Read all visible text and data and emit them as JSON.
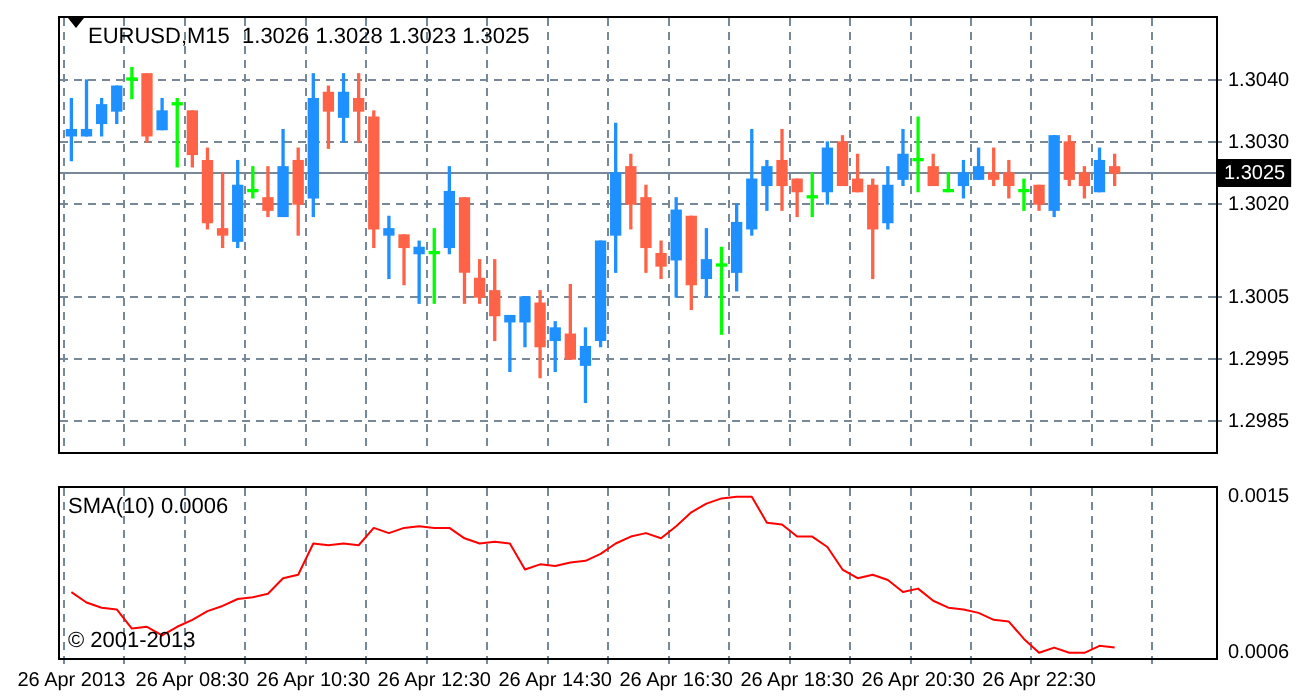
{
  "chart_data": [
    {
      "type": "candlestick",
      "title": "EURUSD,M15  1.3026 1.3028 1.3023 1.3025",
      "categories": [
        null,
        null,
        null,
        null,
        null,
        null,
        null,
        null,
        null,
        null,
        null,
        null,
        null,
        null,
        null,
        null,
        null,
        null,
        null,
        null,
        null,
        null,
        null,
        null,
        null,
        null,
        null,
        null,
        null,
        null,
        null,
        null,
        null,
        null,
        null,
        null,
        null,
        null,
        null,
        null,
        null,
        null,
        null,
        null,
        null,
        null,
        null,
        null,
        null,
        null,
        null,
        null,
        null,
        null,
        null,
        null,
        null,
        null,
        null,
        null,
        null,
        null,
        null,
        null,
        null,
        null,
        null,
        null,
        null,
        null
      ],
      "ohlc": [
        [
          1.3031,
          1.3037,
          1.3027,
          1.3032
        ],
        [
          1.3031,
          1.304,
          1.3031,
          1.3032
        ],
        [
          1.3033,
          1.3037,
          1.3031,
          1.3036
        ],
        [
          1.3035,
          1.3039,
          1.3033,
          1.3039
        ],
        [
          1.304,
          1.3042,
          1.3037,
          1.304
        ],
        [
          1.3041,
          1.3041,
          1.303,
          1.3031
        ],
        [
          1.3032,
          1.3037,
          1.3032,
          1.3035
        ],
        [
          1.3036,
          1.3037,
          1.3026,
          1.3036
        ],
        [
          1.3035,
          1.3035,
          1.3026,
          1.3028
        ],
        [
          1.3027,
          1.3029,
          1.3016,
          1.3017
        ],
        [
          1.3016,
          1.3025,
          1.3013,
          1.3015
        ],
        [
          1.3014,
          1.3027,
          1.3013,
          1.3023
        ],
        [
          1.3022,
          1.3026,
          1.3021,
          1.3022
        ],
        [
          1.3021,
          1.3026,
          1.3018,
          1.3019
        ],
        [
          1.3018,
          1.3032,
          1.3018,
          1.3026
        ],
        [
          1.3027,
          1.3029,
          1.3015,
          1.302
        ],
        [
          1.3021,
          1.3041,
          1.3018,
          1.3037
        ],
        [
          1.3038,
          1.3039,
          1.3029,
          1.3035
        ],
        [
          1.3034,
          1.3041,
          1.303,
          1.3038
        ],
        [
          1.3037,
          1.3041,
          1.303,
          1.3035
        ],
        [
          1.3034,
          1.3035,
          1.3013,
          1.3016
        ],
        [
          1.3015,
          1.3018,
          1.3008,
          1.3016
        ],
        [
          1.3015,
          1.3015,
          1.3007,
          1.3013
        ],
        [
          1.3012,
          1.3014,
          1.3004,
          1.3013
        ],
        [
          1.3012,
          1.3016,
          1.3004,
          1.3012
        ],
        [
          1.3013,
          1.3026,
          1.3012,
          1.3022
        ],
        [
          1.3021,
          1.3021,
          1.3004,
          1.3009
        ],
        [
          1.3008,
          1.3011,
          1.3004,
          1.3005
        ],
        [
          1.3006,
          1.3011,
          1.2998,
          1.3002
        ],
        [
          1.3001,
          1.3002,
          1.2993,
          1.3002
        ],
        [
          1.3001,
          1.3005,
          1.2997,
          1.3005
        ],
        [
          1.3004,
          1.3006,
          1.2992,
          1.2997
        ],
        [
          1.2998,
          1.3001,
          1.2993,
          1.3
        ],
        [
          1.2999,
          1.3007,
          1.2995,
          1.2995
        ],
        [
          1.2994,
          1.3,
          1.2988,
          1.2997
        ],
        [
          1.2998,
          1.3014,
          1.2997,
          1.3014
        ],
        [
          1.3015,
          1.3033,
          1.3009,
          1.3025
        ],
        [
          1.3026,
          1.3028,
          1.3016,
          1.302
        ],
        [
          1.3021,
          1.3023,
          1.3009,
          1.3013
        ],
        [
          1.3012,
          1.3014,
          1.3008,
          1.301
        ],
        [
          1.3011,
          1.3021,
          1.3005,
          1.3019
        ],
        [
          1.3018,
          1.3018,
          1.3003,
          1.3007
        ],
        [
          1.3008,
          1.3016,
          1.3005,
          1.3011
        ],
        [
          1.301,
          1.3013,
          1.2999,
          1.301
        ],
        [
          1.3009,
          1.302,
          1.3006,
          1.3017
        ],
        [
          1.3016,
          1.3032,
          1.3015,
          1.3024
        ],
        [
          1.3023,
          1.3027,
          1.3019,
          1.3026
        ],
        [
          1.3027,
          1.3032,
          1.3019,
          1.3023
        ],
        [
          1.3024,
          1.3024,
          1.3018,
          1.3022
        ],
        [
          1.3021,
          1.3025,
          1.3018,
          1.3021
        ],
        [
          1.3022,
          1.303,
          1.302,
          1.3029
        ],
        [
          1.303,
          1.3031,
          1.3023,
          1.3023
        ],
        [
          1.3024,
          1.3028,
          1.3022,
          1.3022
        ],
        [
          1.3023,
          1.3024,
          1.3008,
          1.3016
        ],
        [
          1.3017,
          1.3026,
          1.3016,
          1.3023
        ],
        [
          1.3024,
          1.3032,
          1.3023,
          1.3028
        ],
        [
          1.3027,
          1.3034,
          1.3022,
          1.3027
        ],
        [
          1.3026,
          1.3028,
          1.3023,
          1.3023
        ],
        [
          1.3022,
          1.3025,
          1.3022,
          1.3022
        ],
        [
          1.3023,
          1.3027,
          1.3021,
          1.3025
        ],
        [
          1.3024,
          1.3029,
          1.3024,
          1.3026
        ],
        [
          1.3025,
          1.3029,
          1.3023,
          1.3024
        ],
        [
          1.3025,
          1.3027,
          1.3021,
          1.3023
        ],
        [
          1.3022,
          1.3024,
          1.3019,
          1.3022
        ],
        [
          1.3023,
          1.3023,
          1.3019,
          1.302
        ],
        [
          1.3019,
          1.3031,
          1.3018,
          1.3031
        ],
        [
          1.303,
          1.3031,
          1.3023,
          1.3024
        ],
        [
          1.3025,
          1.3026,
          1.3021,
          1.3023
        ],
        [
          1.3022,
          1.3029,
          1.3022,
          1.3027
        ],
        [
          1.3026,
          1.3028,
          1.3023,
          1.3025
        ]
      ],
      "colors": [
        "#1e90ff",
        "#1e90ff",
        "#1e90ff",
        "#1e90ff",
        "#00ff00",
        "#ff6347",
        "#1e90ff",
        "#00ff00",
        "#ff6347",
        "#ff6347",
        "#ff6347",
        "#1e90ff",
        "#00ff00",
        "#ff6347",
        "#1e90ff",
        "#ff6347",
        "#1e90ff",
        "#ff6347",
        "#1e90ff",
        "#ff6347",
        "#ff6347",
        "#1e90ff",
        "#ff6347",
        "#1e90ff",
        "#00ff00",
        "#1e90ff",
        "#ff6347",
        "#ff6347",
        "#ff6347",
        "#1e90ff",
        "#1e90ff",
        "#ff6347",
        "#1e90ff",
        "#ff6347",
        "#1e90ff",
        "#1e90ff",
        "#1e90ff",
        "#ff6347",
        "#ff6347",
        "#ff6347",
        "#1e90ff",
        "#ff6347",
        "#1e90ff",
        "#00ff00",
        "#1e90ff",
        "#1e90ff",
        "#1e90ff",
        "#ff6347",
        "#ff6347",
        "#00ff00",
        "#1e90ff",
        "#ff6347",
        "#ff6347",
        "#ff6347",
        "#1e90ff",
        "#1e90ff",
        "#00ff00",
        "#ff6347",
        "#00ff00",
        "#1e90ff",
        "#1e90ff",
        "#ff6347",
        "#ff6347",
        "#00ff00",
        "#ff6347",
        "#1e90ff",
        "#ff6347",
        "#ff6347",
        "#1e90ff",
        "#ff6347"
      ],
      "ylim": [
        1.298,
        1.305
      ],
      "yticks": [
        {
          "value": 1.304,
          "label": "1.3040"
        },
        {
          "value": 1.303,
          "label": "1.3030"
        },
        {
          "value": 1.302,
          "label": "1.3020"
        },
        1.3005,
        1.2995,
        1.2985
      ],
      "grid": true,
      "tick_labels": "y",
      "ref_lines": [
        {
          "axis": "y",
          "value": 1.3025,
          "label": "1.3025",
          "color": "#778899"
        }
      ]
    },
    {
      "type": "line",
      "title": "SMA(10) 0.0006",
      "categories": [
        "26 Apr 2013",
        null,
        null,
        null,
        null,
        null,
        null,
        null,
        "26 Apr 08:30",
        null,
        null,
        null,
        null,
        null,
        null,
        null,
        "26 Apr 10:30",
        null,
        null,
        null,
        null,
        null,
        null,
        null,
        "26 Apr 12:30",
        null,
        null,
        null,
        null,
        null,
        null,
        null,
        "26 Apr 14:30",
        null,
        null,
        null,
        null,
        null,
        null,
        null,
        "26 Apr 16:30",
        null,
        null,
        null,
        null,
        null,
        null,
        null,
        "26 Apr 18:30",
        null,
        null,
        null,
        null,
        null,
        null,
        null,
        "26 Apr 20:30",
        null,
        null,
        null,
        null,
        null,
        null,
        null,
        "26 Apr 22:30",
        null,
        null,
        null,
        null,
        null
      ],
      "series": [
        {
          "color": "#ff0000",
          "values": [
            0.00095,
            0.00089,
            0.00086,
            0.00085,
            0.00074,
            0.00075,
            0.0007,
            0.00075,
            0.00079,
            0.00084,
            0.00087,
            0.00091,
            0.00092,
            0.00094,
            0.00103,
            0.00105,
            0.00123,
            0.00122,
            0.00123,
            0.00122,
            0.00132,
            0.00129,
            0.00132,
            0.00133,
            0.00132,
            0.00132,
            0.00126,
            0.00123,
            0.00124,
            0.00123,
            0.00108,
            0.00111,
            0.0011,
            0.00112,
            0.00113,
            0.00117,
            0.00123,
            0.00127,
            0.00129,
            0.00126,
            0.00133,
            0.00141,
            0.00146,
            0.00149,
            0.0015,
            0.0015,
            0.00135,
            0.00134,
            0.00127,
            0.00127,
            0.00121,
            0.00108,
            0.00103,
            0.00105,
            0.00102,
            0.00095,
            0.00097,
            0.0009,
            0.00086,
            0.00085,
            0.00083,
            0.00079,
            0.00078,
            0.00068,
            0.0006,
            0.00063,
            0.0006,
            0.0006,
            0.00064,
            0.00063
          ]
        }
      ],
      "ylim": [
        0.00057,
        0.00155
      ],
      "yticks": [
        0.0015,
        0.0006
      ],
      "grid": "x",
      "annotations": [
        "© 2001-2013"
      ]
    }
  ]
}
